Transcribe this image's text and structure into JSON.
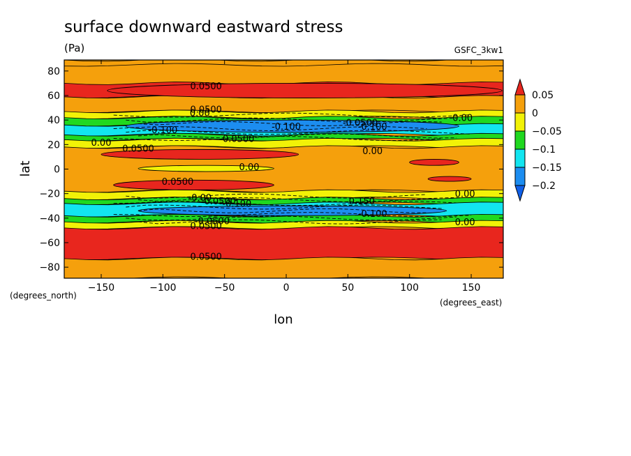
{
  "chart_data": {
    "type": "heatmap",
    "title": "surface downward eastward stress",
    "units": "(Pa)",
    "dataset": "GSFC_3kw1",
    "xlabel": "lon",
    "ylabel": "lat",
    "xunits": "(degrees_east)",
    "yunits": "(degrees_north)",
    "xlim": [
      -180,
      176
    ],
    "ylim": [
      -89,
      89
    ],
    "xticks": [
      -150,
      -100,
      -50,
      0,
      50,
      100,
      150
    ],
    "yticks": [
      -80,
      -60,
      -40,
      -20,
      0,
      20,
      40,
      60,
      80
    ],
    "colorbar": {
      "levels": [
        0.05,
        0,
        -0.05,
        -0.1,
        -0.15,
        -0.2
      ],
      "labels": [
        "0.05",
        "0",
        "−0.05",
        "−0.1",
        "−0.15",
        "−0.2"
      ],
      "colors": [
        "#e8261e",
        "#f5a00c",
        "#f2f207",
        "#20d820",
        "#12e5f0",
        "#1c8df0",
        "#1060e8"
      ],
      "extend": "both"
    },
    "bands": [
      {
        "lat": [
          85,
          89
        ],
        "color": "#f5a00c"
      },
      {
        "lat": [
          59,
          70
        ],
        "color": "#e8261e"
      },
      {
        "lat": [
          47,
          59
        ],
        "color": "#f5a00c"
      },
      {
        "lat": [
          42,
          47
        ],
        "color": "#f2f207"
      },
      {
        "lat": [
          36,
          42
        ],
        "color": "#20d820"
      },
      {
        "lat": [
          28,
          36
        ],
        "color": "#12e5f0"
      },
      {
        "lat": [
          24,
          28
        ],
        "color": "#20d820"
      },
      {
        "lat": [
          18,
          24
        ],
        "color": "#f2f207"
      },
      {
        "lat": [
          -18,
          18
        ],
        "color": "#f5a00c"
      },
      {
        "lat": [
          -24,
          -18
        ],
        "color": "#f2f207"
      },
      {
        "lat": [
          -28,
          -24
        ],
        "color": "#20d820"
      },
      {
        "lat": [
          -38,
          -28
        ],
        "color": "#12e5f0"
      },
      {
        "lat": [
          -43,
          -38
        ],
        "color": "#20d820"
      },
      {
        "lat": [
          -48,
          -43
        ],
        "color": "#f2f207"
      },
      {
        "lat": [
          -73,
          -48
        ],
        "color": "#e8261e"
      },
      {
        "lat": [
          -89,
          -73
        ],
        "color": "#f5a00c"
      }
    ],
    "patches": [
      {
        "type": "lens",
        "lon": [
          -145,
          175
        ],
        "lat": [
          58,
          70
        ],
        "color": "#e8261e"
      },
      {
        "type": "lens",
        "lon": [
          -130,
          140
        ],
        "lat": [
          30,
          40
        ],
        "color": "#1c8df0"
      },
      {
        "type": "lens",
        "lon": [
          -150,
          10
        ],
        "lat": [
          8,
          16
        ],
        "color": "#e8261e"
      },
      {
        "type": "lens",
        "lon": [
          -120,
          -10
        ],
        "lat": [
          -2,
          3
        ],
        "color": "#f2f207"
      },
      {
        "type": "lens",
        "lon": [
          -140,
          -10
        ],
        "lat": [
          -17,
          -9
        ],
        "color": "#e8261e"
      },
      {
        "type": "lens",
        "lon": [
          100,
          140
        ],
        "lat": [
          3,
          8
        ],
        "color": "#e8261e"
      },
      {
        "type": "lens",
        "lon": [
          115,
          150
        ],
        "lat": [
          -10,
          -6
        ],
        "color": "#e8261e"
      },
      {
        "type": "lens",
        "lon": [
          -120,
          130
        ],
        "lat": [
          -38,
          -30
        ],
        "color": "#1c8df0"
      }
    ],
    "contour_labels": [
      {
        "text": "0.0500",
        "lon": -65,
        "lat": 68
      },
      {
        "text": "0.0500",
        "lon": -65,
        "lat": 49
      },
      {
        "text": "0.00",
        "lon": -70,
        "lat": 46
      },
      {
        "text": "-0.0500",
        "lon": 60,
        "lat": 38
      },
      {
        "text": "0.00",
        "lon": 143,
        "lat": 42
      },
      {
        "text": "-0.100",
        "lon": -100,
        "lat": 32
      },
      {
        "text": "-0.100",
        "lon": 0,
        "lat": 35
      },
      {
        "text": "-0.100",
        "lon": 70,
        "lat": 35
      },
      {
        "text": "-0.0500",
        "lon": -40,
        "lat": 25
      },
      {
        "text": "0.0500",
        "lon": -120,
        "lat": 17
      },
      {
        "text": "0.00",
        "lon": -150,
        "lat": 22
      },
      {
        "text": "0.00",
        "lon": 70,
        "lat": 15
      },
      {
        "text": "0.00",
        "lon": -30,
        "lat": 2
      },
      {
        "text": "0.0500",
        "lon": -88,
        "lat": -10
      },
      {
        "text": "0.00",
        "lon": 145,
        "lat": -20
      },
      {
        "text": "-0.00",
        "lon": -70,
        "lat": -23
      },
      {
        "text": "-0.0500",
        "lon": -55,
        "lat": -26
      },
      {
        "text": "-0.100",
        "lon": -40,
        "lat": -28
      },
      {
        "text": "-0.150",
        "lon": 60,
        "lat": -26
      },
      {
        "text": "-0.100",
        "lon": 70,
        "lat": -36
      },
      {
        "text": "-0.0500",
        "lon": -60,
        "lat": -42
      },
      {
        "text": "0.0500",
        "lon": -65,
        "lat": -46
      },
      {
        "text": "0.00",
        "lon": 145,
        "lat": -43
      },
      {
        "text": "0.0500",
        "lon": -65,
        "lat": -71
      }
    ],
    "dashed_contour_lats": [
      44,
      40,
      37,
      33,
      30,
      27,
      25,
      -22,
      -25,
      -28,
      -31,
      -34,
      -37,
      -40,
      -43
    ]
  }
}
